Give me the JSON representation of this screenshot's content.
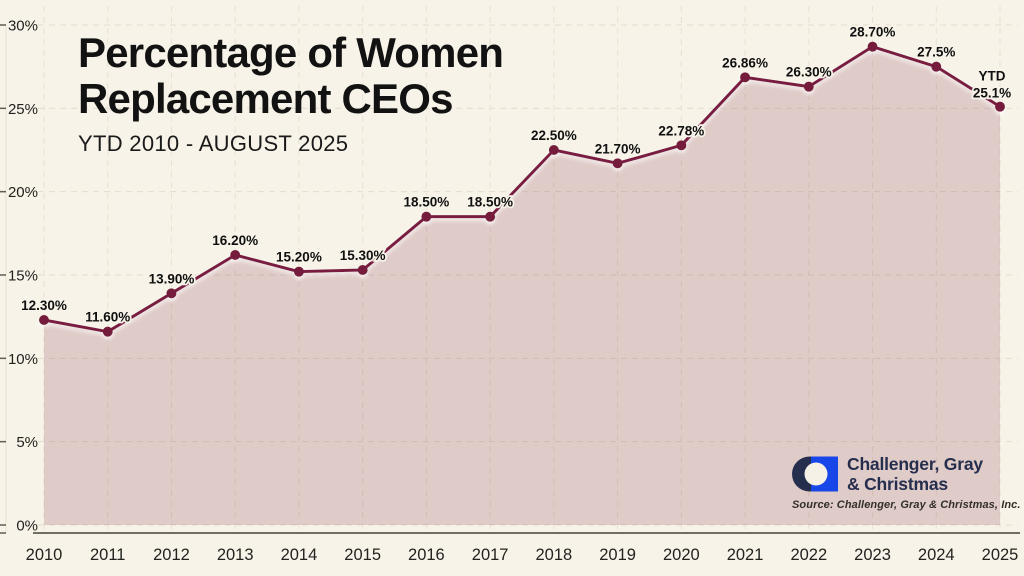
{
  "chart_data": {
    "type": "area",
    "title": "Percentage of Women Replacement CEOs",
    "title_line1": "Percentage of Women",
    "title_line2": "Replacement CEOs",
    "subtitle": "YTD 2010 - AUGUST 2025",
    "categories": [
      "2010",
      "2011",
      "2012",
      "2013",
      "2014",
      "2015",
      "2016",
      "2017",
      "2018",
      "2019",
      "2020",
      "2021",
      "2022",
      "2023",
      "2024",
      "2025"
    ],
    "values": [
      12.3,
      11.6,
      13.9,
      16.2,
      15.2,
      15.3,
      18.5,
      18.5,
      22.5,
      21.7,
      22.78,
      26.86,
      26.3,
      28.7,
      27.5,
      25.1
    ],
    "point_labels": [
      "12.30%",
      "11.60%",
      "13.90%",
      "16.20%",
      "15.20%",
      "15.30%",
      "18.50%",
      "18.50%",
      "22.50%",
      "21.70%",
      "22.78%",
      "26.86%",
      "26.30%",
      "28.70%",
      "27.5%",
      "25.1%"
    ],
    "last_label_prefix": "YTD",
    "ylim": [
      0,
      30
    ],
    "ytick_values": [
      0,
      5,
      10,
      15,
      20,
      25,
      30
    ],
    "ytick_labels": [
      "0%",
      "5%",
      "10%",
      "15%",
      "20%",
      "25%",
      "30%"
    ],
    "grid": true,
    "legend": "none",
    "colors": {
      "background": "#f7f3e8",
      "line": "#7a1f42",
      "point": "#741d3e",
      "area_fill": "rgba(123,33,66,0.19)",
      "grid_h": "#e5decd",
      "grid_v": "#e9e2d2",
      "axis": "#46433c",
      "tick": "#5f5c54",
      "frame": "#e8e1d1",
      "label_text": "#101010",
      "label_halo": "#f7f3e8",
      "axis_text": "#23221f"
    }
  },
  "branding": {
    "logo_line1": "Challenger, Gray",
    "logo_line2": "& Christmas",
    "logo_navy": "#262e4e",
    "logo_blue": "#1747e8",
    "logo_cream": "#f5f1e6",
    "source": "Source: Challenger, Gray & Christmas, Inc."
  }
}
